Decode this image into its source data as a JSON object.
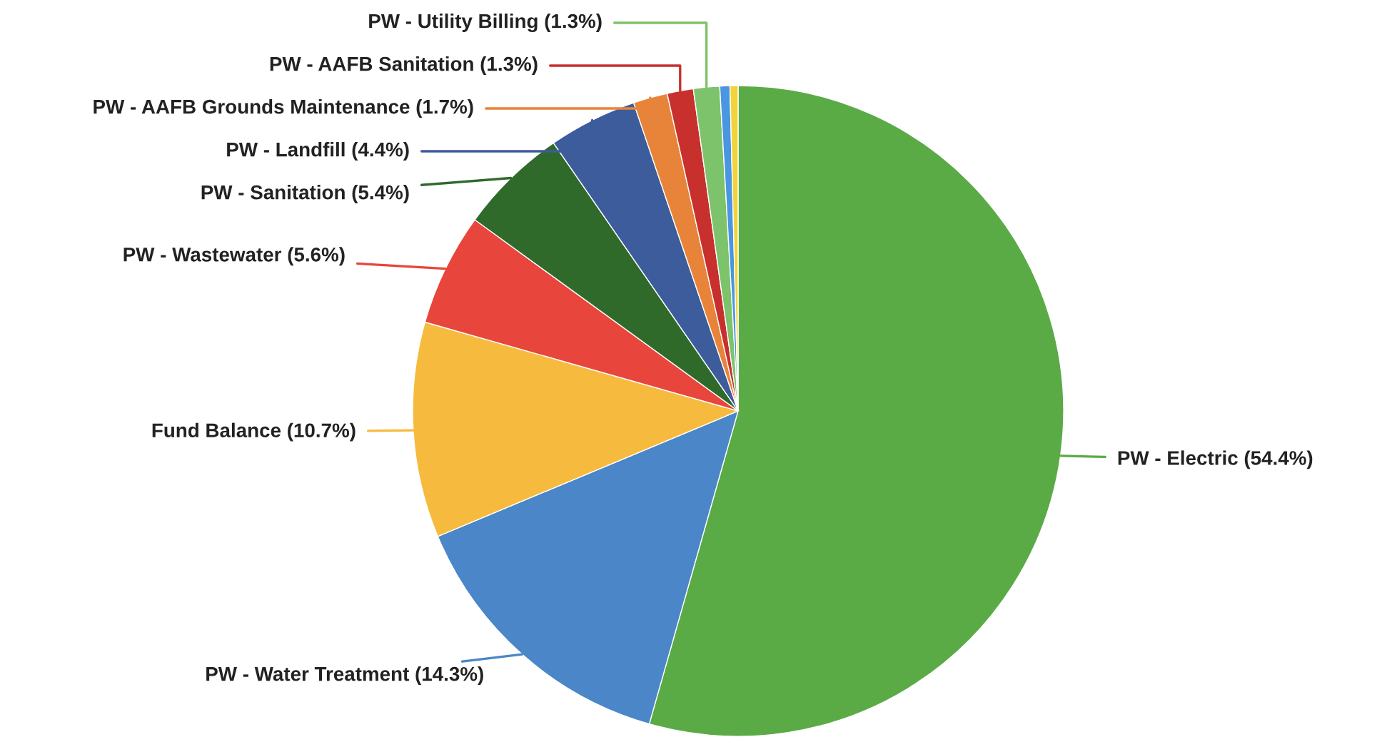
{
  "chart_data": {
    "type": "pie",
    "categories": [
      "PW - Electric (54.4%)",
      "PW - Water Treatment (14.3%)",
      "Fund Balance (10.7%)",
      "PW - Wastewater (5.6%)",
      "PW - Sanitation (5.4%)",
      "PW - Landfill (4.4%)",
      "PW - AAFB Grounds Maintenance (1.7%)",
      "PW - AAFB Sanitation (1.3%)",
      "PW - Utility Billing (1.3%)",
      null,
      null
    ],
    "values": [
      54.4,
      14.3,
      10.7,
      5.6,
      5.4,
      4.4,
      1.7,
      1.3,
      1.3,
      0.5,
      0.4
    ],
    "colors": [
      "#5aab46",
      "#4a86c8",
      "#f6bb3e",
      "#e8453c",
      "#2f6a2b",
      "#3d5c9b",
      "#e8843a",
      "#c8302e",
      "#7dc36b",
      "#4a96e0",
      "#f2d33c"
    ],
    "legend": false
  }
}
